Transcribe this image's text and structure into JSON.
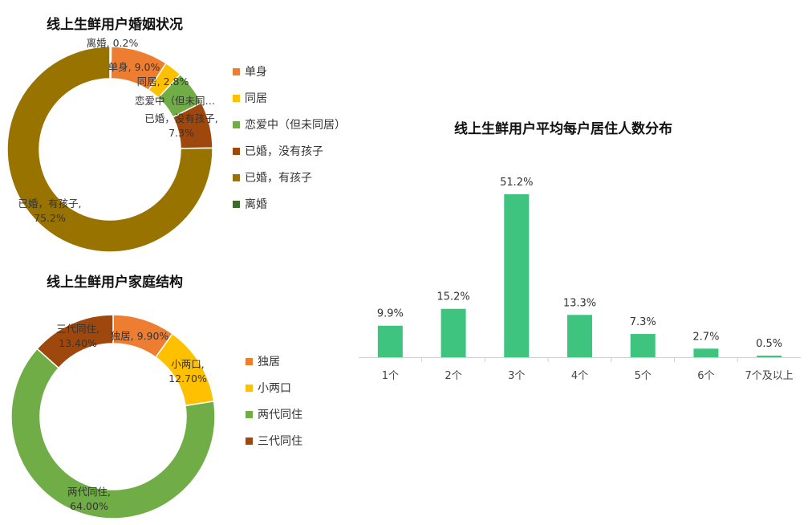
{
  "chart_data": [
    {
      "type": "pie",
      "title": "线上生鲜用户婚姻状况",
      "categories": [
        "离婚",
        "单身",
        "同居",
        "恋爱中（但未同居）",
        "已婚，没有孩子",
        "已婚，有孩子"
      ],
      "values": [
        0.2,
        9.0,
        2.8,
        5.5,
        7.3,
        75.2
      ],
      "colors": [
        "#3e6b2b",
        "#ed7d31",
        "#ffc000",
        "#70ad47",
        "#9e480e",
        "#997300"
      ],
      "data_labels": [
        "离婚, 0.2%",
        "单身, 9.0%",
        "同居, 2.8%",
        "恋爱中（但未同…",
        "已婚，没有孩子,\n7.3%",
        "已婚，有孩子,\n75.2%"
      ],
      "legend": [
        "单身",
        "同居",
        "恋爱中（但未同居）",
        "已婚，没有孩子",
        "已婚，有孩子",
        "离婚"
      ],
      "legend_colors": [
        "#ed7d31",
        "#ffc000",
        "#70ad47",
        "#9e480e",
        "#997300",
        "#3e6b2b"
      ],
      "legend_position": "right"
    },
    {
      "type": "pie",
      "title": "线上生鲜用户家庭结构",
      "categories": [
        "独居",
        "小两口",
        "两代同住",
        "三代同住"
      ],
      "values": [
        9.9,
        12.7,
        64.0,
        13.4
      ],
      "colors": [
        "#ed7d31",
        "#ffc000",
        "#70ad47",
        "#9e480e"
      ],
      "data_labels": [
        "独居, 9.90%",
        "小两口,\n12.70%",
        "两代同住,\n64.00%",
        "三代同住,\n13.40%"
      ],
      "legend": [
        "独居",
        "小两口",
        "两代同住",
        "三代同住"
      ],
      "legend_colors": [
        "#ed7d31",
        "#ffc000",
        "#70ad47",
        "#9e480e"
      ],
      "legend_position": "right"
    },
    {
      "type": "bar",
      "title": "线上生鲜用户平均每户居住人数分布",
      "categories": [
        "1个",
        "2个",
        "3个",
        "4个",
        "5个",
        "6个",
        "7个及以上"
      ],
      "values": [
        9.9,
        15.2,
        51.2,
        13.3,
        7.3,
        2.7,
        0.5
      ],
      "data_labels": [
        "9.9%",
        "15.2%",
        "51.2%",
        "13.3%",
        "7.3%",
        "2.7%",
        "0.5%"
      ],
      "color": "#3ec47e",
      "ylim": [
        0,
        51.2
      ],
      "grid": false
    }
  ]
}
